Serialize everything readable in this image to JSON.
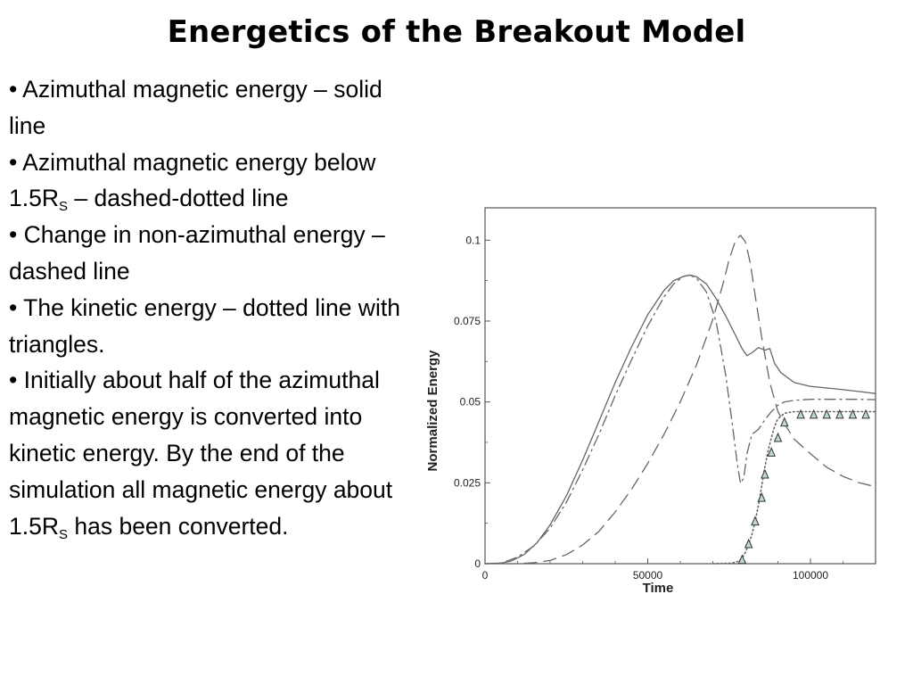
{
  "slide": {
    "title": "Energetics of the Breakout Model",
    "bullets": [
      {
        "pre": "• Azimuthal magnetic energy – solid line",
        "sub": "",
        "post": ""
      },
      {
        "pre": "• Azimuthal magnetic energy below 1.5R",
        "sub": "S",
        "post": " – dashed-dotted line"
      },
      {
        "pre": "• Change in non-azimuthal energy – dashed line",
        "sub": "",
        "post": ""
      },
      {
        "pre": "• The kinetic energy – dotted line with triangles.",
        "sub": "",
        "post": ""
      },
      {
        "pre": "• Initially about half of the azimuthal magnetic energy is converted into kinetic energy. By the end of the simulation all magnetic energy about 1.5R",
        "sub": "S",
        "post": " has been converted."
      }
    ]
  },
  "chart_data": {
    "type": "line",
    "title": "",
    "xlabel": "Time",
    "ylabel": "Normalized Energy",
    "xlim": [
      0,
      120000
    ],
    "ylim": [
      0,
      0.11
    ],
    "xticks": [
      0,
      50000,
      100000
    ],
    "xtick_labels": [
      "0",
      "50000",
      "100000"
    ],
    "yticks": [
      0,
      0.025,
      0.05,
      0.075,
      0.1
    ],
    "ytick_labels": [
      "0",
      "0.025",
      "0.05",
      "0.075",
      "0.1"
    ],
    "grid": false,
    "colors": {
      "axis": "#555555",
      "series": "#666666",
      "marker_fill": "#bcd8d8",
      "marker_stroke": "#333333"
    },
    "series": [
      {
        "style": "solid",
        "x": [
          0,
          5000,
          8000,
          12000,
          16000,
          20000,
          25000,
          30000,
          35000,
          40000,
          45000,
          50000,
          55000,
          58000,
          61000,
          63000,
          65000,
          68000,
          71000,
          74000,
          77000,
          79000,
          80500,
          82000,
          84000,
          86000,
          87500,
          89000,
          91000,
          95000,
          100000,
          105000,
          110000,
          115000,
          120000
        ],
        "y": [
          0,
          0.0002,
          0.0008,
          0.0028,
          0.0065,
          0.012,
          0.021,
          0.032,
          0.044,
          0.056,
          0.067,
          0.077,
          0.0845,
          0.0875,
          0.0888,
          0.0892,
          0.0887,
          0.0865,
          0.082,
          0.0765,
          0.0705,
          0.0664,
          0.0643,
          0.0652,
          0.0668,
          0.066,
          0.0665,
          0.0618,
          0.059,
          0.056,
          0.0548,
          0.0543,
          0.0538,
          0.0532,
          0.0526
        ]
      },
      {
        "style": "dashdot",
        "x": [
          0,
          5000,
          10000,
          15000,
          20000,
          25000,
          30000,
          35000,
          40000,
          45000,
          50000,
          55000,
          58000,
          61000,
          63000,
          65000,
          68000,
          71000,
          74000,
          76000,
          77500,
          78500,
          79500,
          80500,
          82000,
          84000,
          86000,
          88000,
          90000,
          92000,
          95000,
          100000,
          105000,
          110000,
          115000,
          120000
        ],
        "y": [
          0,
          0.0002,
          0.002,
          0.0055,
          0.011,
          0.019,
          0.029,
          0.04,
          0.052,
          0.063,
          0.0735,
          0.0825,
          0.0865,
          0.0888,
          0.0892,
          0.0882,
          0.084,
          0.075,
          0.058,
          0.043,
          0.031,
          0.0248,
          0.0265,
          0.034,
          0.04,
          0.0415,
          0.0445,
          0.047,
          0.049,
          0.05,
          0.0505,
          0.0508,
          0.0508,
          0.0508,
          0.0508,
          0.0507
        ]
      },
      {
        "style": "dashed",
        "x": [
          0,
          10000,
          15000,
          20000,
          25000,
          30000,
          35000,
          40000,
          45000,
          50000,
          55000,
          60000,
          65000,
          70000,
          73000,
          75000,
          77000,
          78500,
          80000,
          81500,
          83000,
          85000,
          87500,
          90000,
          92500,
          95000,
          100000,
          105000,
          110000,
          115000,
          120000
        ],
        "y": [
          0,
          0,
          0.0003,
          0.001,
          0.0028,
          0.0058,
          0.01,
          0.016,
          0.023,
          0.031,
          0.04,
          0.05,
          0.0615,
          0.0755,
          0.086,
          0.094,
          0.1,
          0.1015,
          0.0995,
          0.093,
          0.083,
          0.07,
          0.056,
          0.047,
          0.0425,
          0.0385,
          0.034,
          0.0298,
          0.027,
          0.025,
          0.0238
        ]
      },
      {
        "style": "dotted",
        "x": [
          70000,
          76000,
          78000,
          79000,
          80000,
          81000,
          82000,
          83000,
          84000,
          85000,
          86000,
          87000,
          88000,
          89000,
          90000,
          92000,
          95000,
          100000,
          110000,
          120000
        ],
        "y": [
          0,
          0.0002,
          0.0008,
          0.0018,
          0.0035,
          0.006,
          0.009,
          0.013,
          0.018,
          0.024,
          0.03,
          0.035,
          0.039,
          0.0425,
          0.0448,
          0.0465,
          0.047,
          0.047,
          0.047,
          0.047
        ]
      },
      {
        "style": "triangles",
        "x": [
          79000,
          81000,
          83000,
          85000,
          86000,
          88000,
          90000,
          92000,
          97000,
          101000,
          105000,
          109000,
          113000,
          117000
        ],
        "y": [
          0.0013,
          0.0062,
          0.0132,
          0.0205,
          0.0277,
          0.0345,
          0.039,
          0.0438,
          0.0462,
          0.0462,
          0.0462,
          0.0462,
          0.0462,
          0.0462
        ]
      }
    ]
  }
}
